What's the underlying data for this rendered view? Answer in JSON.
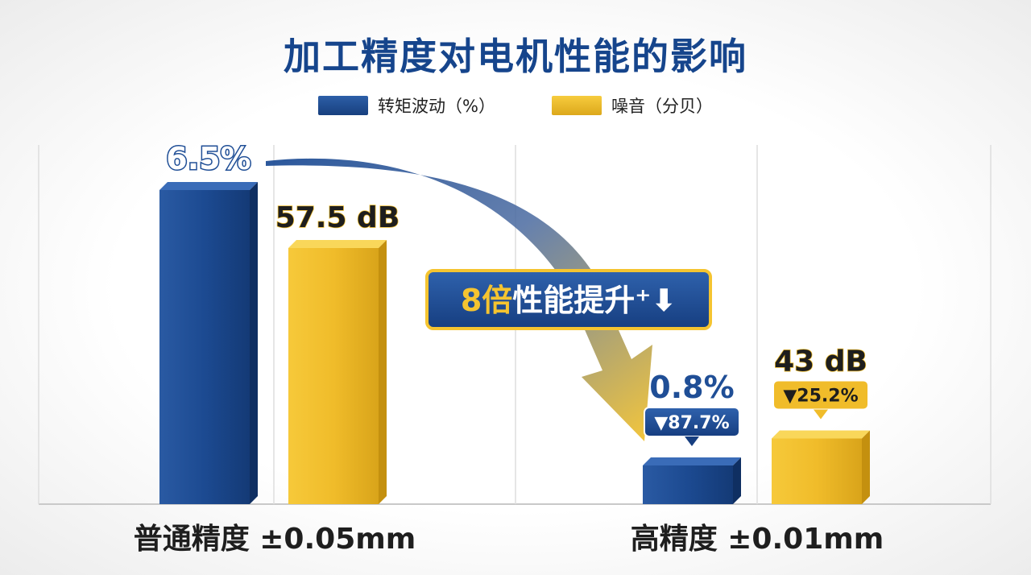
{
  "title": "加工精度对电机性能的影响",
  "legend": [
    {
      "label": "转矩波动（%）",
      "color": "#1f4e96"
    },
    {
      "label": "噪音（分贝）",
      "color": "#f2bf2d"
    }
  ],
  "callout": {
    "label": "8倍性能提升",
    "suffix": "⁺⬇"
  },
  "chart_data": {
    "type": "bar",
    "categories": [
      "普通精度 ±0.05mm",
      "高精度 ±0.01mm"
    ],
    "series": [
      {
        "name": "转矩波动（%）",
        "values": [
          6.5,
          0.8
        ],
        "labels": [
          "6.5%",
          "0.8%"
        ],
        "changes": [
          "",
          "▼87.7%"
        ],
        "color": "#1f4e96"
      },
      {
        "name": "噪音（分贝）",
        "values": [
          57.5,
          43
        ],
        "labels": [
          "57.5 dB",
          "43 dB"
        ],
        "changes": [
          "",
          "▼25.2%"
        ],
        "color": "#f2bf2d"
      }
    ]
  }
}
